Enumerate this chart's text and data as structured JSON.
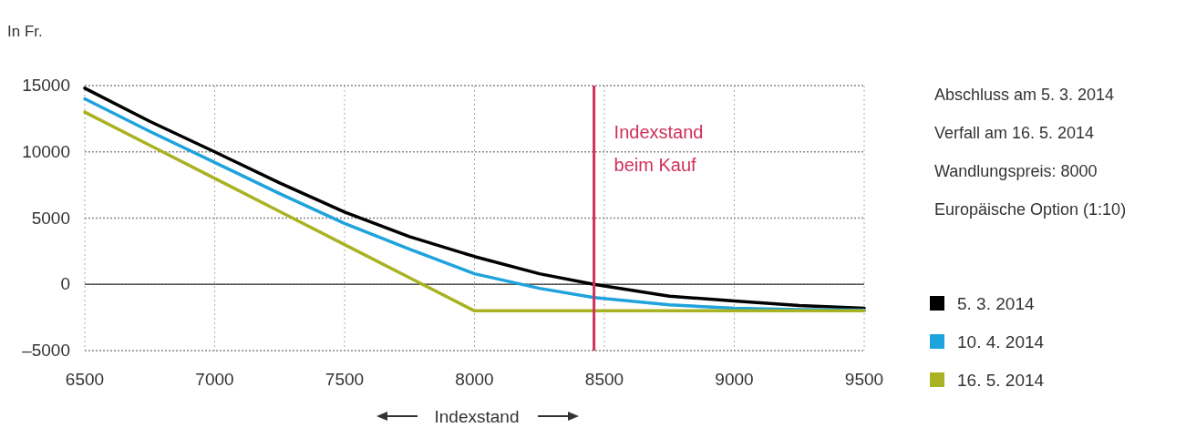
{
  "chart_data": {
    "type": "line",
    "ylabel": "In Fr.",
    "xlabel": "Indexstand",
    "x": [
      6500,
      6750,
      7000,
      7250,
      7500,
      7750,
      8000,
      8250,
      8460,
      8750,
      9000,
      9250,
      9500
    ],
    "series": [
      {
        "name": "5. 3. 2014",
        "color": "#000000",
        "values": [
          14800,
          12300,
          10000,
          7650,
          5450,
          3600,
          2100,
          800,
          0,
          -900,
          -1250,
          -1600,
          -1800
        ]
      },
      {
        "name": "10. 4. 2014",
        "color": "#1fa3dc",
        "values": [
          14000,
          11550,
          9200,
          6850,
          4600,
          2650,
          800,
          -300,
          -1000,
          -1550,
          -1800,
          -1900,
          -1950
        ]
      },
      {
        "name": "16. 5. 2014",
        "color": "#a9b222",
        "values": [
          13000,
          10500,
          8000,
          5500,
          3000,
          500,
          -2000,
          -2000,
          -2000,
          -2000,
          -2000,
          -2000,
          -2000
        ]
      }
    ],
    "xlim": [
      6500,
      9500
    ],
    "xticks": [
      6500,
      7000,
      7500,
      8000,
      8500,
      9000,
      9500
    ],
    "ylim": [
      -5000,
      15000
    ],
    "yticks": [
      {
        "value": -5000,
        "label": "–5000"
      },
      {
        "value": 0,
        "label": "0"
      },
      {
        "value": 5000,
        "label": "5000"
      },
      {
        "value": 10000,
        "label": "10000"
      },
      {
        "value": 15000,
        "label": "15000"
      }
    ],
    "ref_lines": [
      {
        "axis": "x",
        "value": 8460,
        "label": "Indexstand\nbeim Kauf",
        "color": "#d0305a"
      },
      {
        "axis": "y",
        "value": 0,
        "color": "#555555"
      }
    ],
    "annotations": [
      "Abschluss am 5. 3. 2014",
      "Verfall am 16. 5. 2014",
      "Wandlungspreis: 8000",
      "Europäische Option (1:10)"
    ],
    "grid": true,
    "legend": "right",
    "line_style": "solid",
    "marker": "none"
  }
}
